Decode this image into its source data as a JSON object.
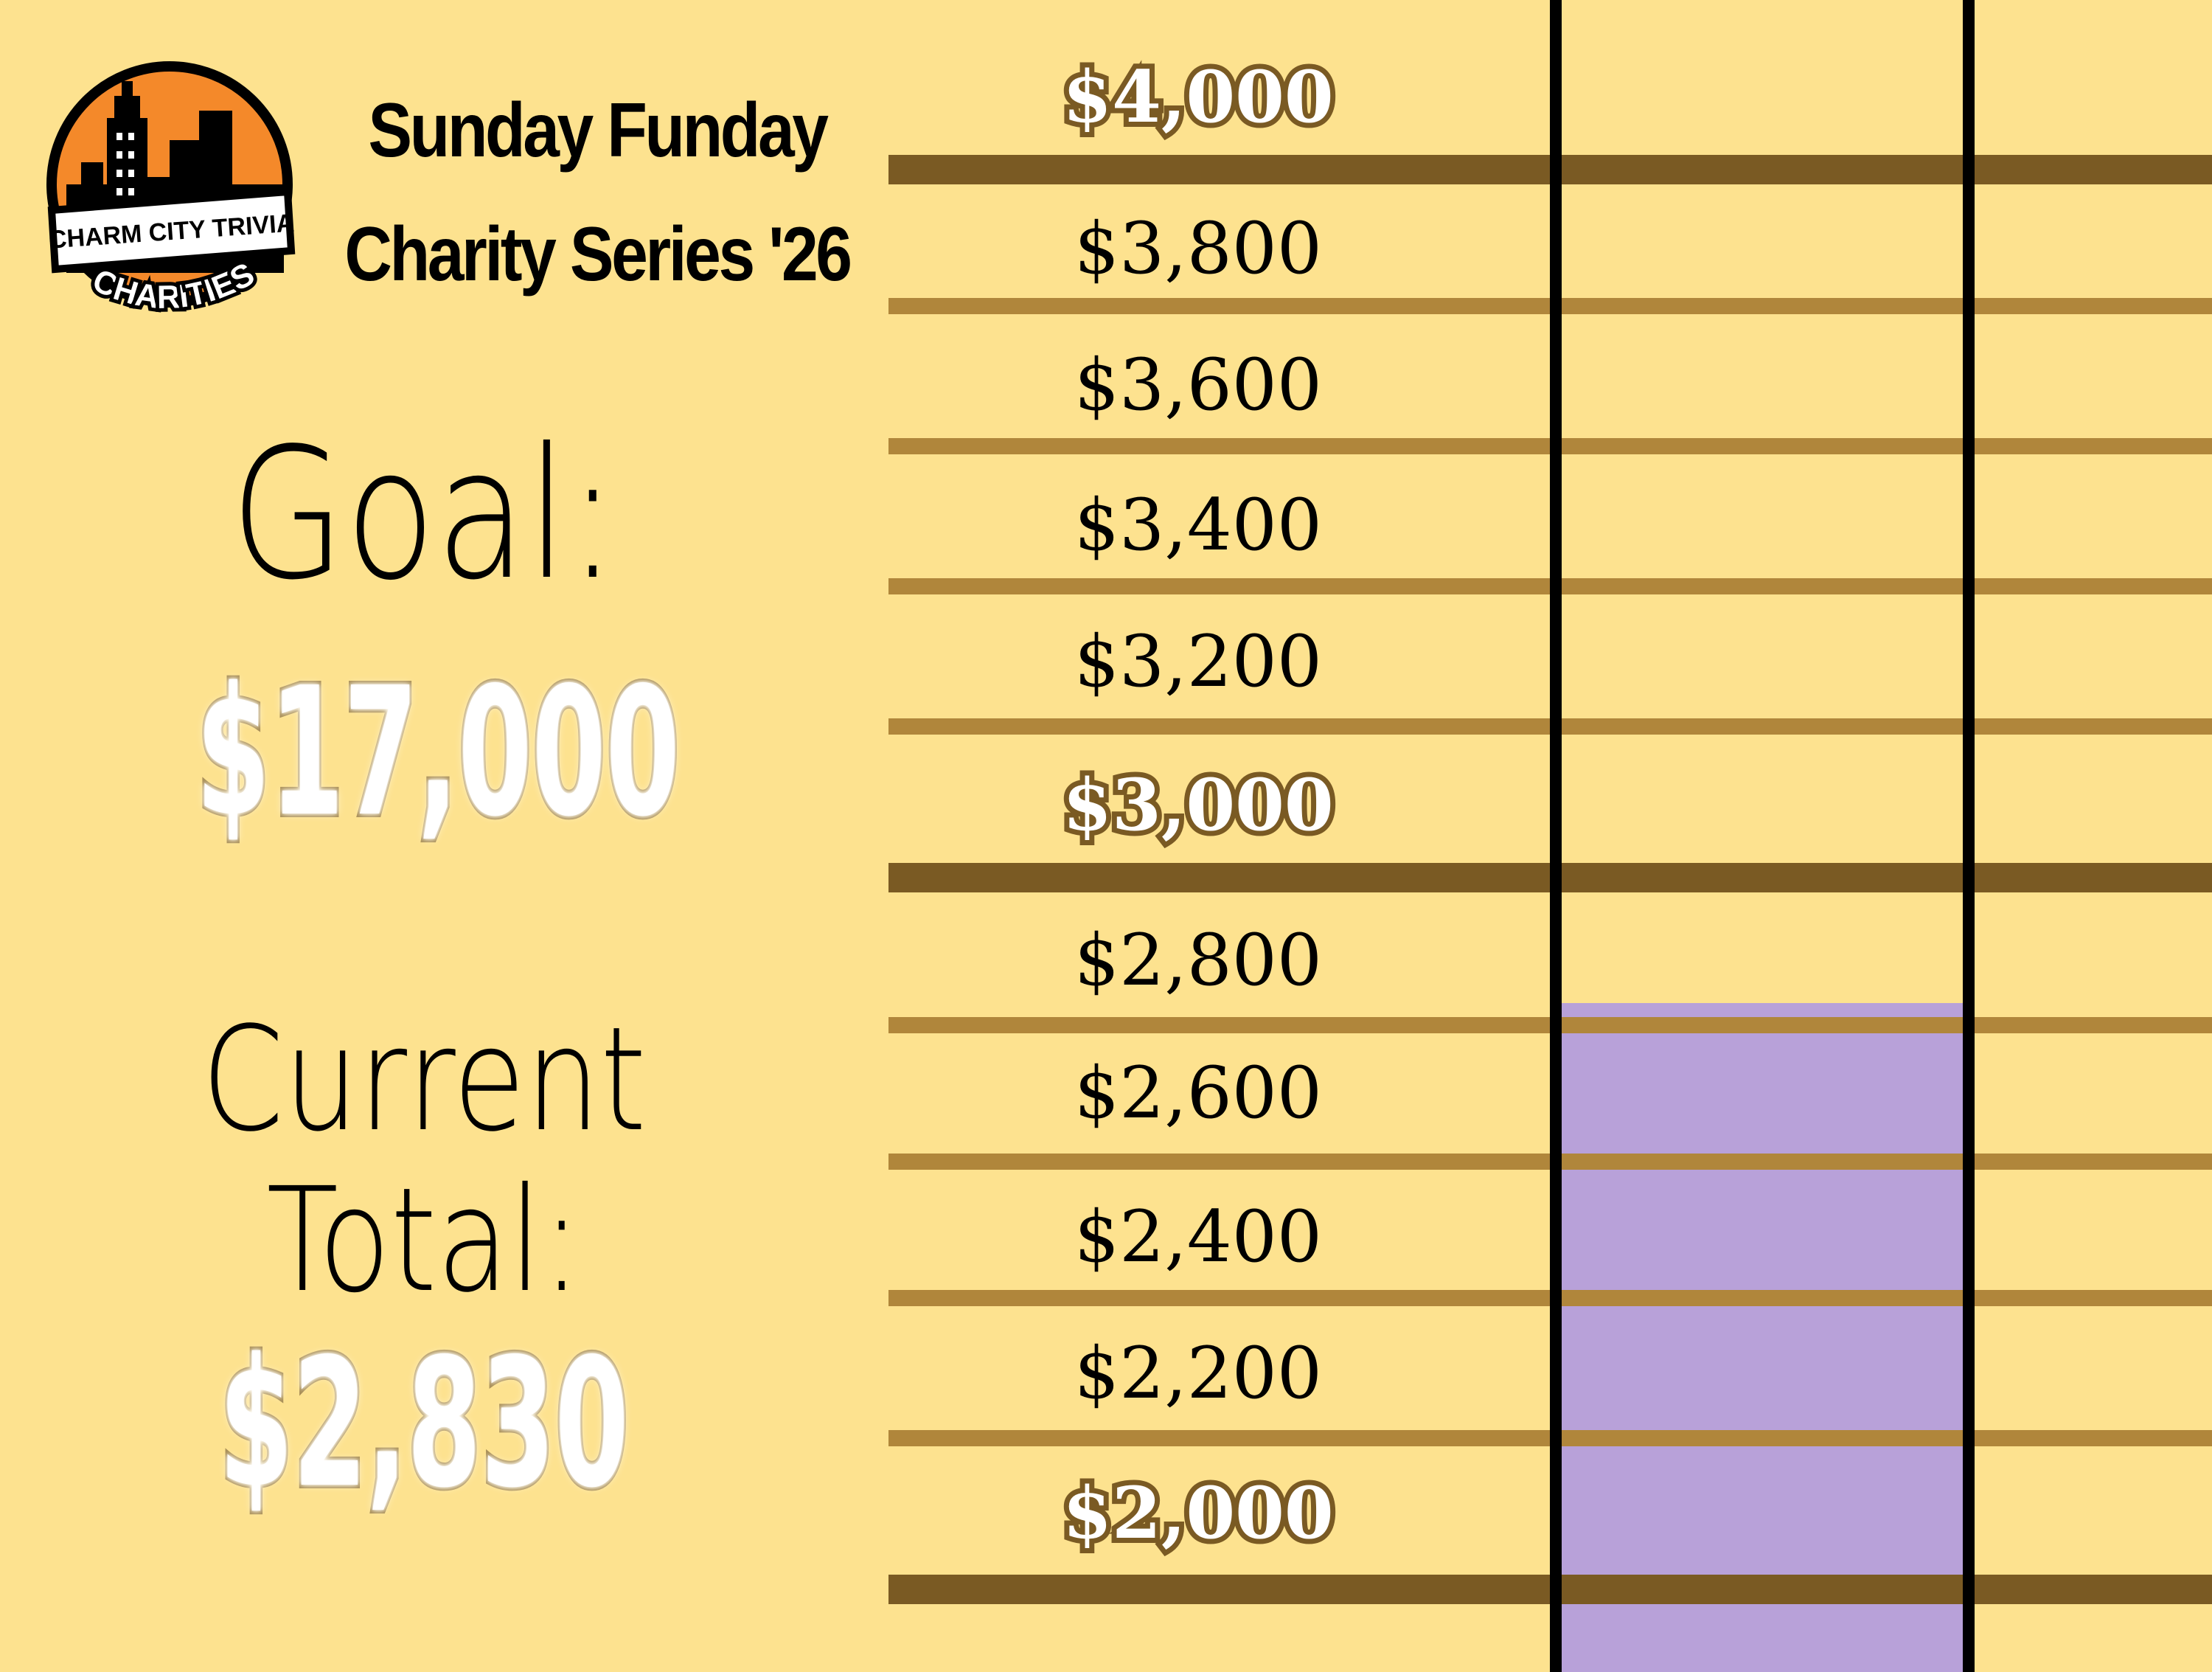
{
  "logo": {
    "banner_text": "CHARM CITY TRIVIA",
    "arc_text": "CHARITIES",
    "colors": {
      "orange": "#f4892a",
      "black": "#000000",
      "white": "#ffffff"
    }
  },
  "title": {
    "line1": "Sunday Funday",
    "line2": "Charity Series '26"
  },
  "goal": {
    "label": "Goal:",
    "value": "$17,000"
  },
  "current": {
    "label_line1": "Current",
    "label_line2": "Total:",
    "value": "$2,830"
  },
  "colors": {
    "background": "#fde28f",
    "gridline": "#b0863b",
    "major_gridline": "#7a5a23",
    "bar": "#b8a1d9",
    "tube_wall": "#000000"
  },
  "chart_data": {
    "type": "bar",
    "categories": [
      ""
    ],
    "values": [
      2830
    ],
    "ylim": [
      2000,
      4000
    ],
    "ticks": [
      {
        "value": 4000,
        "label": "$4,000",
        "major": true
      },
      {
        "value": 3800,
        "label": "$3,800",
        "major": false
      },
      {
        "value": 3600,
        "label": "$3,600",
        "major": false
      },
      {
        "value": 3400,
        "label": "$3,400",
        "major": false
      },
      {
        "value": 3200,
        "label": "$3,200",
        "major": false
      },
      {
        "value": 3000,
        "label": "$3,000",
        "major": true
      },
      {
        "value": 2800,
        "label": "$2,800",
        "major": false
      },
      {
        "value": 2600,
        "label": "$2,600",
        "major": false
      },
      {
        "value": 2400,
        "label": "$2,400",
        "major": false
      },
      {
        "value": 2200,
        "label": "$2,200",
        "major": false
      },
      {
        "value": 2000,
        "label": "$2,000",
        "major": true
      }
    ],
    "grid": true
  }
}
